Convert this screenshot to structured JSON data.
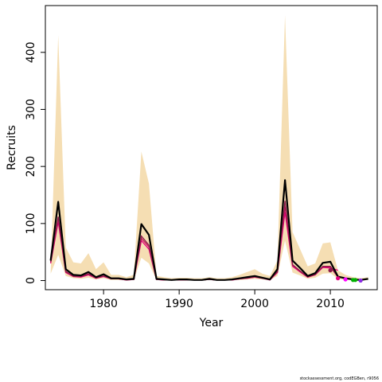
{
  "footer": {
    "text": "stockassessment.org, codEGBen, r9056"
  },
  "chart_data": {
    "type": "line",
    "xlabel": "Year",
    "ylabel": "Recruits",
    "xlim": [
      1972.3,
      2016.2
    ],
    "ylim": [
      -16,
      482
    ],
    "xticks": [
      1980,
      1990,
      2000,
      2010
    ],
    "yticks": [
      0,
      100,
      200,
      300,
      400
    ],
    "colors": {
      "band": "#f5deb3",
      "estimate": "#000000",
      "retro_1": "#e6007e",
      "retro_2": "#c2185b",
      "retro_3": "#8b1a4a",
      "terminal_points": [
        "#8b1a4a",
        "#e6007e",
        "#ff00ff",
        "#00b000",
        "#00b000",
        "#8a2be2"
      ]
    },
    "x": [
      1973,
      1974,
      1975,
      1976,
      1977,
      1978,
      1979,
      1980,
      1981,
      1982,
      1983,
      1984,
      1985,
      1986,
      1987,
      1988,
      1989,
      1990,
      1991,
      1992,
      1993,
      1994,
      1995,
      1996,
      1997,
      1998,
      1999,
      2000,
      2001,
      2002,
      2003,
      2004,
      2005,
      2006,
      2007,
      2008,
      2009,
      2010,
      2011,
      2012,
      2013,
      2014,
      2015
    ],
    "estimate": [
      35,
      138,
      20,
      10,
      9,
      15,
      6,
      11,
      4,
      4,
      2,
      3,
      99,
      80,
      3,
      2,
      1,
      2,
      2,
      1,
      1,
      3,
      1,
      1,
      2,
      4,
      6,
      8,
      5,
      2,
      20,
      176,
      35,
      22,
      8,
      13,
      31,
      33,
      7,
      4,
      2,
      1,
      3
    ],
    "upper": [
      12,
      430,
      58,
      32,
      30,
      48,
      20,
      32,
      10,
      10,
      6,
      10,
      226,
      170,
      8,
      6,
      4,
      5,
      5,
      4,
      4,
      6,
      4,
      4,
      6,
      10,
      15,
      20,
      12,
      8,
      35,
      465,
      85,
      55,
      25,
      30,
      65,
      67,
      18,
      10,
      6,
      4,
      6
    ],
    "lower": [
      12,
      45,
      8,
      4,
      3,
      5,
      2,
      4,
      1,
      1,
      1,
      1,
      40,
      30,
      1,
      1,
      0,
      1,
      1,
      0,
      0,
      1,
      0,
      0,
      1,
      1,
      2,
      3,
      2,
      1,
      8,
      70,
      14,
      9,
      3,
      5,
      12,
      13,
      3,
      1,
      1,
      0,
      1
    ],
    "retro_series": [
      {
        "values": [
          30,
          103,
          14,
          7,
          6,
          10,
          4,
          7,
          3,
          3,
          1,
          2,
          70,
          55,
          2,
          1,
          1,
          1,
          1,
          1,
          1,
          2,
          1,
          1,
          1,
          3,
          4,
          6,
          4,
          1,
          14,
          120,
          25,
          15,
          6,
          10,
          23,
          22,
          18
        ]
      },
      {
        "values": [
          32,
          108,
          15,
          7,
          7,
          11,
          4,
          8,
          3,
          3,
          1,
          2,
          74,
          59,
          2,
          1,
          1,
          1,
          1,
          1,
          1,
          2,
          1,
          1,
          1,
          3,
          4,
          6,
          4,
          1,
          15,
          130,
          27,
          16,
          6,
          10,
          24,
          24,
          6,
          4
        ]
      },
      {
        "values": [
          33,
          112,
          16,
          8,
          7,
          12,
          5,
          8,
          3,
          3,
          2,
          2,
          78,
          62,
          2,
          2,
          1,
          2,
          1,
          1,
          1,
          2,
          1,
          1,
          2,
          3,
          5,
          7,
          4,
          2,
          16,
          140,
          28,
          17,
          7,
          11,
          25,
          25,
          7,
          4,
          2
        ]
      }
    ],
    "terminal_points": [
      {
        "x": 2010,
        "y": 18
      },
      {
        "x": 2011,
        "y": 4
      },
      {
        "x": 2012,
        "y": 2
      },
      {
        "x": 2013,
        "y": 1
      },
      {
        "x": 2013.3,
        "y": 1
      },
      {
        "x": 2014,
        "y": 0
      }
    ]
  }
}
